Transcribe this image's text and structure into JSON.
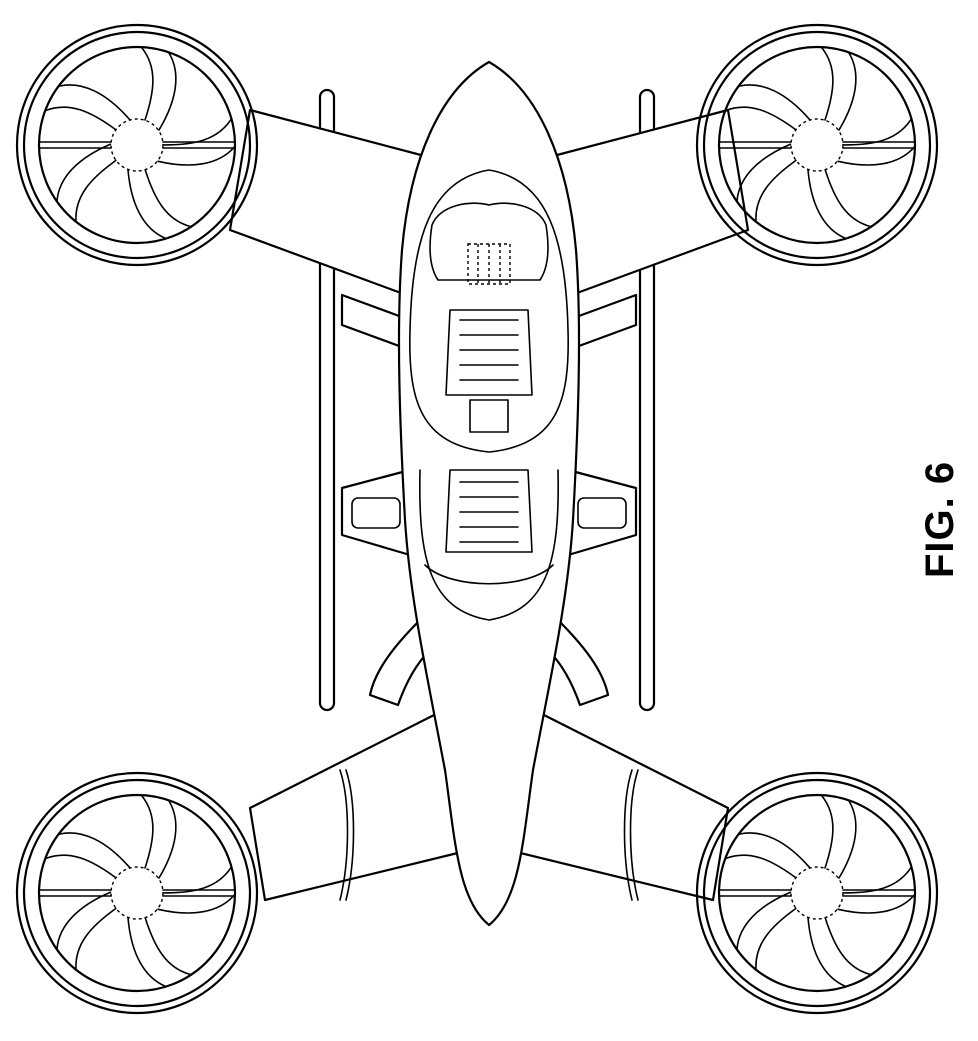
{
  "figure": {
    "label": "FIG. 6"
  }
}
